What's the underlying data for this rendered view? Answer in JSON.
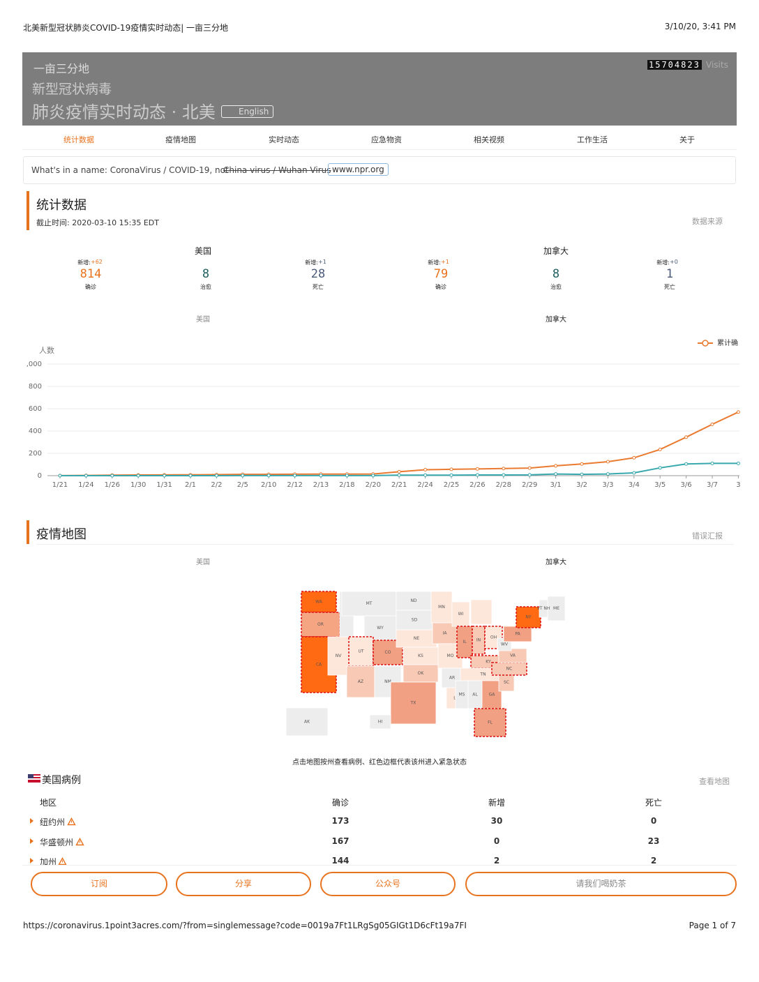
{
  "print_header": {
    "title": "北美新型冠状肺炎COVID-19疫情实时动态| 一亩三分地",
    "datetime": "3/10/20, 3:41 PM"
  },
  "banner": {
    "logo": "一亩三分地",
    "line1": "新型冠状病毒",
    "line2": "肺炎疫情实时动态 · 北美",
    "lang": "English",
    "visits_count": "15704823",
    "visits_label": "Visits"
  },
  "nav": [
    "统计数据",
    "疫情地图",
    "实时动态",
    "应急物资",
    "相关视频",
    "工作生活",
    "关于"
  ],
  "notice": {
    "prefix": "What's in a name: CoronaVirus / COVID-19, not ",
    "struck": "China virus / Wuhan Virus",
    "link": "www.npr.org"
  },
  "stats": {
    "title": "统计数据",
    "updated": "截止时间: 2020-03-10 15:35 EDT",
    "source": "数据来源",
    "regions": [
      {
        "name": "美国",
        "items": [
          {
            "new_label": "新增:",
            "new": "+62",
            "value": "814",
            "label": "确诊",
            "color": "#e8731f"
          },
          {
            "new_label": "",
            "new": "",
            "value": "8",
            "label": "治愈",
            "color": "#1f5f5f"
          },
          {
            "new_label": "新增:",
            "new": "+1",
            "value": "28",
            "label": "死亡",
            "color": "#4a5a78"
          }
        ]
      },
      {
        "name": "加拿大",
        "items": [
          {
            "new_label": "新增:",
            "new": "+1",
            "value": "79",
            "label": "确诊",
            "color": "#e8731f"
          },
          {
            "new_label": "",
            "new": "",
            "value": "8",
            "label": "治愈",
            "color": "#1f5f5f"
          },
          {
            "new_label": "新增:",
            "new": "+0",
            "value": "1",
            "label": "死亡",
            "color": "#4a5a78"
          }
        ]
      }
    ],
    "tabs": [
      "美国",
      "加拿大"
    ]
  },
  "chart_data": {
    "type": "line",
    "y_label": "人数",
    "categories": [
      "1/21",
      "1/24",
      "1/26",
      "1/30",
      "1/31",
      "2/1",
      "2/2",
      "2/5",
      "2/10",
      "2/12",
      "2/13",
      "2/18",
      "2/20",
      "2/21",
      "2/24",
      "2/25",
      "2/26",
      "2/28",
      "2/29",
      "3/1",
      "3/2",
      "3/3",
      "3/4",
      "3/5",
      "3/6",
      "3/7",
      "3"
    ],
    "series": [
      {
        "name": "累计确",
        "color": "#ea7a2f",
        "values": [
          1,
          2,
          5,
          6,
          7,
          8,
          9,
          12,
          12,
          13,
          14,
          14,
          15,
          35,
          53,
          57,
          60,
          64,
          68,
          88,
          105,
          125,
          160,
          235,
          345,
          460,
          570
        ]
      },
      {
        "color": "#37a8ae",
        "values": [
          0,
          0,
          0,
          0,
          0,
          0,
          0,
          1,
          1,
          1,
          1,
          1,
          1,
          5,
          5,
          5,
          6,
          6,
          7,
          15,
          12,
          15,
          25,
          70,
          105,
          110,
          110
        ]
      }
    ],
    "ylim": [
      0,
      1000
    ],
    "yticks": [
      0,
      200,
      400,
      600,
      800,
      {
        "value": 1000,
        "label": ",000"
      }
    ],
    "grid": true
  },
  "map_section": {
    "title": "疫情地图",
    "report": "错误汇报",
    "tabs": [
      "美国",
      "加拿大"
    ],
    "caption": "点击地图按州查看病例、红色边框代表该州进入紧急状态",
    "states": [
      {
        "code": "WA",
        "color": "#ff6a13",
        "emergency": true
      },
      {
        "code": "OR",
        "color": "#f6a582",
        "emergency": true
      },
      {
        "code": "CA",
        "color": "#ff6a13",
        "emergency": true
      },
      {
        "code": "NV",
        "color": "#fde6da",
        "emergency": false
      },
      {
        "code": null,
        "color": "#ededed",
        "emergency": false
      },
      {
        "code": "MT",
        "color": "#ededed",
        "emergency": false
      },
      {
        "code": "WY",
        "color": "#ededed",
        "emergency": false
      },
      {
        "code": "UT",
        "color": "#fde6da",
        "emergency": true
      },
      {
        "code": "CO",
        "color": "#f2a083",
        "emergency": true
      },
      {
        "code": "AZ",
        "color": "#f8c9b4",
        "emergency": false
      },
      {
        "code": "NM",
        "color": "#ededed",
        "emergency": false
      },
      {
        "code": "ND",
        "color": "#ededed",
        "emergency": false
      },
      {
        "code": "SD",
        "color": "#ededed",
        "emergency": false
      },
      {
        "code": "NE",
        "color": "#fde6da",
        "emergency": false
      },
      {
        "code": "KS",
        "color": "#fde6da",
        "emergency": false
      },
      {
        "code": "OK",
        "color": "#f8c9b4",
        "emergency": false
      },
      {
        "code": "TX",
        "color": "#f2a083",
        "emergency": false
      },
      {
        "code": "MN",
        "color": "#fde6da",
        "emergency": false
      },
      {
        "code": "IA",
        "color": "#f8c9b4",
        "emergency": false
      },
      {
        "code": "MO",
        "color": "#fde6da",
        "emergency": false
      },
      {
        "code": "AR",
        "color": "#ededed",
        "emergency": false
      },
      {
        "code": "LA",
        "color": "#fde6da",
        "emergency": false
      },
      {
        "code": "WI",
        "color": "#fde6da",
        "emergency": false
      },
      {
        "code": "IL",
        "color": "#f2a083",
        "emergency": true
      },
      {
        "code": null,
        "color": "#fde6da",
        "emergency": false
      },
      {
        "code": "IN",
        "color": "#f8c9b4",
        "emergency": true
      },
      {
        "code": "OH",
        "color": "#fde6da",
        "emergency": true
      },
      {
        "code": "KY",
        "color": "#f8c9b4",
        "emergency": true
      },
      {
        "code": "TN",
        "color": "#fde6da",
        "emergency": false
      },
      {
        "code": "MS",
        "color": "#ededed",
        "emergency": false
      },
      {
        "code": "AL",
        "color": "#ededed",
        "emergency": false
      },
      {
        "code": "GA",
        "color": "#f2a083",
        "emergency": false
      },
      {
        "code": "FL",
        "color": "#f2a083",
        "emergency": true
      },
      {
        "code": "SC",
        "color": "#f8c9b4",
        "emergency": false
      },
      {
        "code": "NC",
        "color": "#f8c9b4",
        "emergency": true
      },
      {
        "code": "VA",
        "color": "#f8c9b4",
        "emergency": false
      },
      {
        "code": "WV",
        "color": "#ededed",
        "emergency": false
      },
      {
        "code": "PA",
        "color": "#f2a083",
        "emergency": false
      },
      {
        "code": "NY",
        "color": "#ff6a13",
        "emergency": true
      },
      {
        "code": "ME",
        "color": "#ededed",
        "emergency": false
      },
      {
        "code": "VT NH",
        "color": "#ededed",
        "emergency": false
      },
      {
        "code": "AK",
        "color": "#ededed",
        "emergency": false
      },
      {
        "code": "HI",
        "color": "#ededed",
        "emergency": false
      }
    ]
  },
  "cases": {
    "title": "美国病例",
    "view_map": "查看地图",
    "columns": [
      "地区",
      "确诊",
      "新增",
      "死亡"
    ],
    "rows": [
      [
        "纽约州",
        "173",
        "30",
        "0"
      ],
      [
        "华盛顿州",
        "167",
        "0",
        "23"
      ],
      [
        "加州",
        "144",
        "2",
        "2"
      ]
    ]
  },
  "buttons": [
    "订阅",
    "分享",
    "公众号",
    "请我们喝奶茶"
  ],
  "footer": {
    "url": "https://coronavirus.1point3acres.com/?from=singlemessage?code=0019a7Ft1LRgSg05GIGt1D6cFt19a7FI",
    "page": "Page 1 of 7"
  }
}
